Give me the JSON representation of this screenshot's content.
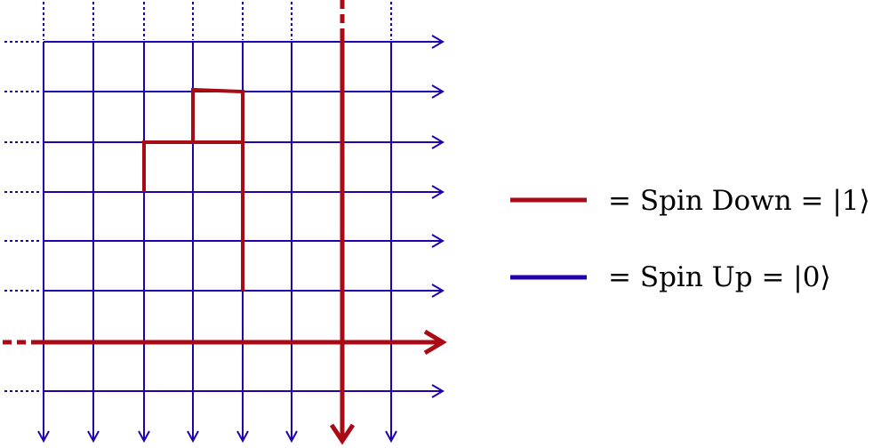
{
  "colors": {
    "spin_up": "#2200b0",
    "spin_down": "#aa0a14"
  },
  "lattice": {
    "columns": 8,
    "rows": 8,
    "spin_down_column": 6,
    "spin_down_row": 6
  },
  "legend": {
    "spin_down_label": "= Spin Down = |1⟩",
    "spin_up_label": "= Spin Up = |0⟩"
  }
}
